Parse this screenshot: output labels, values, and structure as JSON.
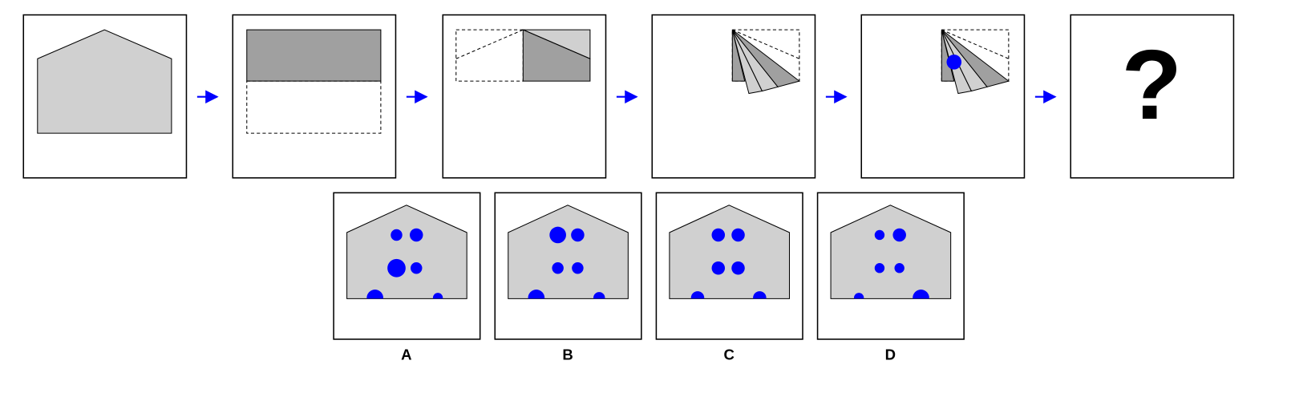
{
  "question_mark": "?",
  "options": [
    {
      "label": "A"
    },
    {
      "label": "B"
    },
    {
      "label": "C"
    },
    {
      "label": "D"
    }
  ]
}
